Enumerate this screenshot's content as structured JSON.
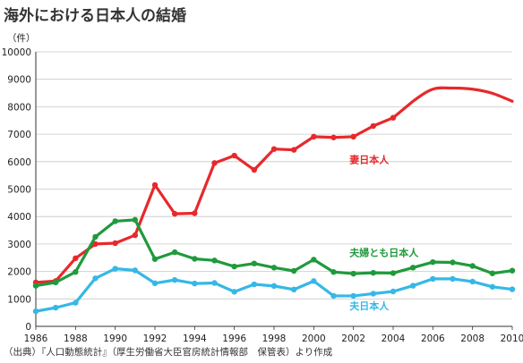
{
  "title": "海外における日本人の結婚",
  "source": "（出典）『人口動態統計』（厚生労働省大臣官房統計情報部　保管表）より作成",
  "chart_data": {
    "type": "line",
    "title": "海外における日本人の結婚",
    "ylabel": "（件）",
    "xlabel": "",
    "ylim": [
      0,
      10000
    ],
    "xlim": [
      1986,
      2010
    ],
    "yticks": [
      "0",
      "1000",
      "2000",
      "3000",
      "4000",
      "5000",
      "6000",
      "7000",
      "8000",
      "9000",
      "10000"
    ],
    "xticks": [
      "1986",
      "1988",
      "1990",
      "1992",
      "1994",
      "1996",
      "1998",
      "2000",
      "2002",
      "2004",
      "2006",
      "2008",
      "2010"
    ],
    "grid": "horizontal",
    "x": [
      1986,
      1987,
      1988,
      1989,
      1990,
      1991,
      1992,
      1993,
      1994,
      1995,
      1996,
      1997,
      1998,
      1999,
      2000,
      2001,
      2002,
      2003,
      2004,
      2005,
      2006,
      2007,
      2008,
      2009,
      2010
    ],
    "series": [
      {
        "name": "妻日本人",
        "color": "#e8282b",
        "smooth_from_index": 19,
        "values": [
          1600,
          1650,
          2480,
          3000,
          3030,
          3320,
          5150,
          4100,
          4120,
          5950,
          6220,
          5700,
          6460,
          6430,
          6910,
          6880,
          6910,
          7300,
          7600,
          8200,
          8640,
          8680,
          8640,
          8490,
          8200
        ]
      },
      {
        "name": "夫婦とも日本人",
        "color": "#1f9a3c",
        "values": [
          1480,
          1600,
          1980,
          3260,
          3830,
          3880,
          2450,
          2700,
          2460,
          2400,
          2180,
          2290,
          2140,
          2020,
          2430,
          1980,
          1920,
          1950,
          1940,
          2140,
          2340,
          2330,
          2200,
          1930,
          2030
        ]
      },
      {
        "name": "夫日本人",
        "color": "#35b8e6",
        "values": [
          550,
          680,
          860,
          1750,
          2100,
          2040,
          1570,
          1690,
          1560,
          1580,
          1260,
          1530,
          1470,
          1340,
          1650,
          1110,
          1110,
          1190,
          1270,
          1480,
          1730,
          1730,
          1630,
          1440,
          1350
        ]
      }
    ],
    "annotations": [
      {
        "text": "妻日本人",
        "series": 0,
        "x": 2001.8,
        "y": 5950
      },
      {
        "text": "夫婦とも日本人",
        "series": 1,
        "x": 2001.8,
        "y": 2550
      },
      {
        "text": "夫日本人",
        "series": 2,
        "x": 2001.8,
        "y": 620
      }
    ]
  }
}
